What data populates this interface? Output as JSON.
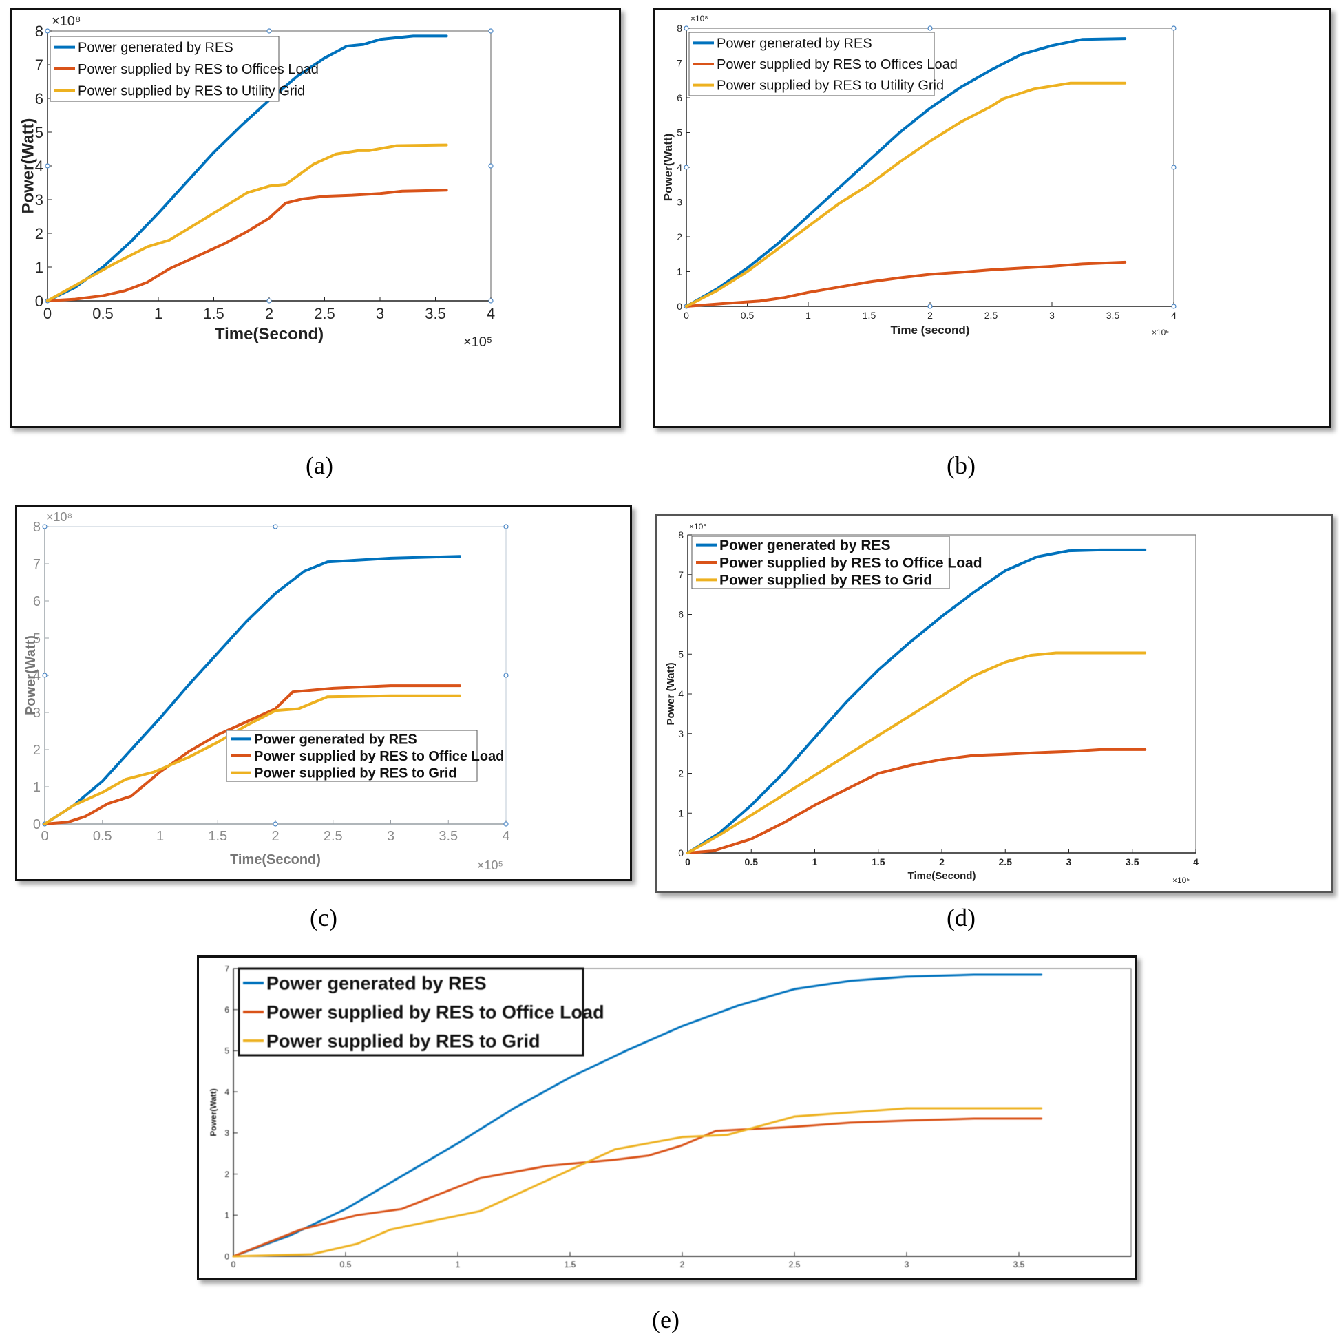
{
  "chart_data": [
    {
      "type": "line",
      "panel": "a",
      "caption": "(a)",
      "xlabel": "Time(Second)",
      "ylabel": "Power(Watt)",
      "x_exponent": "×10⁵",
      "y_exponent": "×10⁸",
      "xlim": [
        0,
        4
      ],
      "ylim": [
        0,
        8
      ],
      "xticks": [
        "0",
        "0.5",
        "1",
        "1.5",
        "2",
        "2.5",
        "3",
        "3.5",
        "4"
      ],
      "yticks": [
        "0",
        "1",
        "2",
        "3",
        "4",
        "5",
        "6",
        "7",
        "8"
      ],
      "legend_position": "top-left",
      "series": [
        {
          "name": "Power generated by RES",
          "color": "#0072BD",
          "points": [
            [
              0,
              0
            ],
            [
              0.25,
              0.4
            ],
            [
              0.5,
              1.0
            ],
            [
              0.75,
              1.75
            ],
            [
              1,
              2.6
            ],
            [
              1.25,
              3.5
            ],
            [
              1.5,
              4.4
            ],
            [
              1.75,
              5.2
            ],
            [
              2,
              5.95
            ],
            [
              2.25,
              6.65
            ],
            [
              2.5,
              7.2
            ],
            [
              2.7,
              7.55
            ],
            [
              2.85,
              7.6
            ],
            [
              3,
              7.75
            ],
            [
              3.3,
              7.85
            ],
            [
              3.6,
              7.85
            ]
          ]
        },
        {
          "name": "Power supplied by RES to Offices Load",
          "color": "#D95319",
          "points": [
            [
              0,
              0
            ],
            [
              0.25,
              0.05
            ],
            [
              0.5,
              0.15
            ],
            [
              0.7,
              0.3
            ],
            [
              0.9,
              0.55
            ],
            [
              1.1,
              0.95
            ],
            [
              1.4,
              1.4
            ],
            [
              1.6,
              1.7
            ],
            [
              1.8,
              2.05
            ],
            [
              2,
              2.45
            ],
            [
              2.15,
              2.9
            ],
            [
              2.3,
              3.02
            ],
            [
              2.5,
              3.1
            ],
            [
              2.75,
              3.13
            ],
            [
              3,
              3.18
            ],
            [
              3.2,
              3.25
            ],
            [
              3.6,
              3.28
            ]
          ]
        },
        {
          "name": "Power supplied by RES to Utility Grid",
          "color": "#EDB120",
          "points": [
            [
              0,
              0
            ],
            [
              0.3,
              0.55
            ],
            [
              0.6,
              1.1
            ],
            [
              0.9,
              1.6
            ],
            [
              1.1,
              1.8
            ],
            [
              1.4,
              2.4
            ],
            [
              1.6,
              2.8
            ],
            [
              1.8,
              3.2
            ],
            [
              2,
              3.4
            ],
            [
              2.15,
              3.45
            ],
            [
              2.4,
              4.05
            ],
            [
              2.6,
              4.35
            ],
            [
              2.8,
              4.45
            ],
            [
              2.9,
              4.45
            ],
            [
              3.15,
              4.6
            ],
            [
              3.6,
              4.62
            ]
          ]
        }
      ]
    },
    {
      "type": "line",
      "panel": "b",
      "caption": "(b)",
      "xlabel": "Time (second)",
      "ylabel": "Power(Watt)",
      "x_exponent": "×10⁵",
      "y_exponent": "×10⁸",
      "xlim": [
        0,
        4
      ],
      "ylim": [
        0,
        8
      ],
      "xticks": [
        "0",
        "0.5",
        "1",
        "1.5",
        "2",
        "2.5",
        "3",
        "3.5",
        "4"
      ],
      "yticks": [
        "0",
        "1",
        "2",
        "3",
        "4",
        "5",
        "6",
        "7",
        "8"
      ],
      "legend_position": "top-left",
      "series": [
        {
          "name": "Power generated by RES",
          "color": "#0072BD",
          "points": [
            [
              0,
              0
            ],
            [
              0.25,
              0.5
            ],
            [
              0.5,
              1.1
            ],
            [
              0.75,
              1.8
            ],
            [
              1,
              2.6
            ],
            [
              1.25,
              3.4
            ],
            [
              1.5,
              4.2
            ],
            [
              1.75,
              5.0
            ],
            [
              2,
              5.7
            ],
            [
              2.25,
              6.3
            ],
            [
              2.5,
              6.8
            ],
            [
              2.75,
              7.25
            ],
            [
              3,
              7.5
            ],
            [
              3.25,
              7.68
            ],
            [
              3.6,
              7.7
            ]
          ]
        },
        {
          "name": "Power supplied by RES to Offices Load",
          "color": "#D95319",
          "points": [
            [
              0,
              0
            ],
            [
              0.3,
              0.08
            ],
            [
              0.6,
              0.15
            ],
            [
              0.8,
              0.25
            ],
            [
              1,
              0.4
            ],
            [
              1.25,
              0.55
            ],
            [
              1.5,
              0.7
            ],
            [
              1.75,
              0.82
            ],
            [
              2,
              0.92
            ],
            [
              2.25,
              0.98
            ],
            [
              2.5,
              1.05
            ],
            [
              2.75,
              1.1
            ],
            [
              3,
              1.15
            ],
            [
              3.25,
              1.22
            ],
            [
              3.6,
              1.27
            ]
          ]
        },
        {
          "name": "Power supplied by RES to Utility Grid",
          "color": "#EDB120",
          "points": [
            [
              0,
              0
            ],
            [
              0.25,
              0.45
            ],
            [
              0.5,
              1.0
            ],
            [
              0.75,
              1.65
            ],
            [
              1,
              2.3
            ],
            [
              1.25,
              2.95
            ],
            [
              1.5,
              3.5
            ],
            [
              1.75,
              4.15
            ],
            [
              2,
              4.75
            ],
            [
              2.25,
              5.3
            ],
            [
              2.5,
              5.75
            ],
            [
              2.6,
              5.97
            ],
            [
              2.85,
              6.25
            ],
            [
              3.15,
              6.42
            ],
            [
              3.6,
              6.42
            ]
          ]
        }
      ]
    },
    {
      "type": "line",
      "panel": "c",
      "caption": "(c)",
      "xlabel": "Time(Second)",
      "ylabel": "Power(Watt)",
      "x_exponent": "×10⁵",
      "y_exponent": "×10⁸",
      "xlim": [
        0,
        4
      ],
      "ylim": [
        0,
        8
      ],
      "xticks": [
        "0",
        "0.5",
        "1",
        "1.5",
        "2",
        "2.5",
        "3",
        "3.5",
        "4"
      ],
      "yticks": [
        "0",
        "1",
        "2",
        "3",
        "4",
        "5",
        "6",
        "7",
        "8"
      ],
      "legend_position": "lower-right",
      "series": [
        {
          "name": "Power generated by RES",
          "color": "#0072BD",
          "points": [
            [
              0,
              0
            ],
            [
              0.25,
              0.5
            ],
            [
              0.5,
              1.15
            ],
            [
              0.75,
              2.0
            ],
            [
              1,
              2.85
            ],
            [
              1.25,
              3.75
            ],
            [
              1.5,
              4.6
            ],
            [
              1.75,
              5.45
            ],
            [
              2,
              6.2
            ],
            [
              2.25,
              6.8
            ],
            [
              2.45,
              7.05
            ],
            [
              3,
              7.15
            ],
            [
              3.6,
              7.2
            ]
          ]
        },
        {
          "name": "Power supplied by RES to Office Load",
          "color": "#D95319",
          "points": [
            [
              0,
              0
            ],
            [
              0.2,
              0.05
            ],
            [
              0.35,
              0.2
            ],
            [
              0.55,
              0.55
            ],
            [
              0.75,
              0.75
            ],
            [
              1,
              1.4
            ],
            [
              1.25,
              1.95
            ],
            [
              1.5,
              2.4
            ],
            [
              1.75,
              2.75
            ],
            [
              2,
              3.1
            ],
            [
              2.15,
              3.55
            ],
            [
              2.5,
              3.65
            ],
            [
              3,
              3.72
            ],
            [
              3.6,
              3.72
            ]
          ]
        },
        {
          "name": "Power supplied by RES to Grid",
          "color": "#EDB120",
          "points": [
            [
              0,
              0
            ],
            [
              0.25,
              0.5
            ],
            [
              0.5,
              0.85
            ],
            [
              0.7,
              1.2
            ],
            [
              0.95,
              1.4
            ],
            [
              1.25,
              1.8
            ],
            [
              1.5,
              2.2
            ],
            [
              1.75,
              2.65
            ],
            [
              2,
              3.05
            ],
            [
              2.2,
              3.1
            ],
            [
              2.45,
              3.42
            ],
            [
              3,
              3.45
            ],
            [
              3.6,
              3.45
            ]
          ]
        }
      ]
    },
    {
      "type": "line",
      "panel": "d",
      "caption": "(d)",
      "xlabel": "Time(Second)",
      "ylabel": "Power (Watt)",
      "x_exponent": "×10⁵",
      "y_exponent": "×10⁸",
      "xlim": [
        0,
        4
      ],
      "ylim": [
        0,
        8
      ],
      "xticks": [
        "0",
        "0.5",
        "1",
        "1.5",
        "2",
        "2.5",
        "3",
        "3.5",
        "4"
      ],
      "yticks": [
        "0",
        "1",
        "2",
        "3",
        "4",
        "5",
        "6",
        "7",
        "8"
      ],
      "legend_position": "top-left",
      "series": [
        {
          "name": "Power generated by RES",
          "color": "#0072BD",
          "points": [
            [
              0,
              0
            ],
            [
              0.25,
              0.5
            ],
            [
              0.5,
              1.2
            ],
            [
              0.75,
              2.0
            ],
            [
              1,
              2.9
            ],
            [
              1.25,
              3.8
            ],
            [
              1.5,
              4.6
            ],
            [
              1.75,
              5.3
            ],
            [
              2,
              5.95
            ],
            [
              2.25,
              6.55
            ],
            [
              2.5,
              7.1
            ],
            [
              2.75,
              7.45
            ],
            [
              3,
              7.6
            ],
            [
              3.25,
              7.62
            ],
            [
              3.6,
              7.62
            ]
          ]
        },
        {
          "name": "Power supplied by RES to Office Load",
          "color": "#D95319",
          "points": [
            [
              0,
              0
            ],
            [
              0.2,
              0.05
            ],
            [
              0.5,
              0.35
            ],
            [
              0.75,
              0.75
            ],
            [
              1,
              1.2
            ],
            [
              1.25,
              1.6
            ],
            [
              1.5,
              2.0
            ],
            [
              1.75,
              2.2
            ],
            [
              2,
              2.35
            ],
            [
              2.25,
              2.45
            ],
            [
              2.5,
              2.48
            ],
            [
              2.75,
              2.52
            ],
            [
              3,
              2.55
            ],
            [
              3.25,
              2.6
            ],
            [
              3.6,
              2.6
            ]
          ]
        },
        {
          "name": "Power supplied by RES to Grid",
          "color": "#EDB120",
          "points": [
            [
              0,
              0
            ],
            [
              0.25,
              0.45
            ],
            [
              0.5,
              0.95
            ],
            [
              0.75,
              1.45
            ],
            [
              1,
              1.95
            ],
            [
              1.25,
              2.45
            ],
            [
              1.5,
              2.95
            ],
            [
              1.75,
              3.45
            ],
            [
              2,
              3.95
            ],
            [
              2.25,
              4.45
            ],
            [
              2.5,
              4.8
            ],
            [
              2.7,
              4.97
            ],
            [
              2.9,
              5.03
            ],
            [
              3.6,
              5.03
            ]
          ]
        }
      ]
    },
    {
      "type": "line",
      "panel": "e",
      "caption": "(e)",
      "xlabel": "",
      "ylabel": "Power(Watt)",
      "x_exponent": "",
      "y_exponent": "",
      "xlim": [
        0,
        4
      ],
      "ylim": [
        0,
        7
      ],
      "xticks": [
        "0",
        "0.5",
        "1",
        "1.5",
        "2",
        "2.5",
        "3",
        "3.5"
      ],
      "yticks": [
        "0",
        "1",
        "2",
        "3",
        "4",
        "5",
        "6",
        "7"
      ],
      "legend_position": "top-left",
      "series": [
        {
          "name": "Power generated by RES",
          "color": "#0072BD",
          "points": [
            [
              0,
              0
            ],
            [
              0.25,
              0.5
            ],
            [
              0.5,
              1.15
            ],
            [
              0.75,
              1.95
            ],
            [
              1,
              2.75
            ],
            [
              1.25,
              3.6
            ],
            [
              1.5,
              4.35
            ],
            [
              1.75,
              5.0
            ],
            [
              2,
              5.6
            ],
            [
              2.25,
              6.1
            ],
            [
              2.5,
              6.5
            ],
            [
              2.75,
              6.7
            ],
            [
              3,
              6.8
            ],
            [
              3.3,
              6.85
            ],
            [
              3.6,
              6.85
            ]
          ]
        },
        {
          "name": "Power supplied by RES to Office Load",
          "color": "#D95319",
          "points": [
            [
              0,
              0
            ],
            [
              0.3,
              0.65
            ],
            [
              0.55,
              1.0
            ],
            [
              0.75,
              1.15
            ],
            [
              1.1,
              1.9
            ],
            [
              1.4,
              2.2
            ],
            [
              1.7,
              2.35
            ],
            [
              1.85,
              2.45
            ],
            [
              2,
              2.7
            ],
            [
              2.15,
              3.05
            ],
            [
              2.5,
              3.15
            ],
            [
              2.75,
              3.25
            ],
            [
              3,
              3.3
            ],
            [
              3.3,
              3.35
            ],
            [
              3.6,
              3.35
            ]
          ]
        },
        {
          "name": "Power supplied by RES to Grid",
          "color": "#EDB120",
          "points": [
            [
              0,
              0
            ],
            [
              0.35,
              0.05
            ],
            [
              0.55,
              0.3
            ],
            [
              0.7,
              0.65
            ],
            [
              1.1,
              1.1
            ],
            [
              1.4,
              1.85
            ],
            [
              1.7,
              2.6
            ],
            [
              2,
              2.9
            ],
            [
              2.2,
              2.95
            ],
            [
              2.5,
              3.4
            ],
            [
              2.75,
              3.5
            ],
            [
              3,
              3.6
            ],
            [
              3.6,
              3.6
            ]
          ]
        }
      ]
    }
  ]
}
